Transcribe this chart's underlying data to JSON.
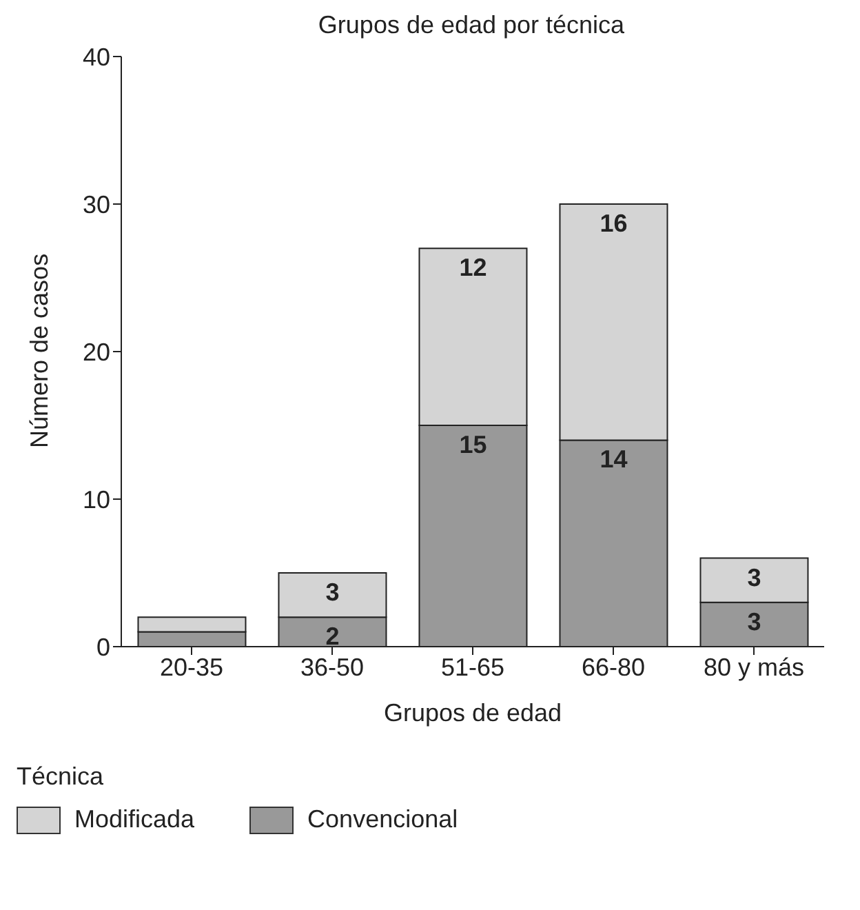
{
  "chart_data": {
    "type": "bar",
    "title": "Grupos de edad por técnica",
    "xlabel": "Grupos de edad",
    "ylabel": "Número de casos",
    "legend_title": "Técnica",
    "categories": [
      "20-35",
      "36-50",
      "51-65",
      "66-80",
      "80 y más"
    ],
    "stacked": true,
    "ylim": [
      0,
      40
    ],
    "yticks": [
      0,
      10,
      20,
      30,
      40
    ],
    "grid": false,
    "legend": "bottom",
    "series": [
      {
        "name": "Convencional",
        "color": "#999999",
        "values": [
          1,
          2,
          15,
          14,
          3
        ],
        "value_labels": [
          null,
          "2",
          "15",
          "14",
          "3"
        ]
      },
      {
        "name": "Modificada",
        "color": "#d4d4d4",
        "values": [
          1,
          3,
          12,
          16,
          3
        ],
        "value_labels": [
          null,
          "3",
          "12",
          "16",
          "3"
        ]
      }
    ]
  }
}
